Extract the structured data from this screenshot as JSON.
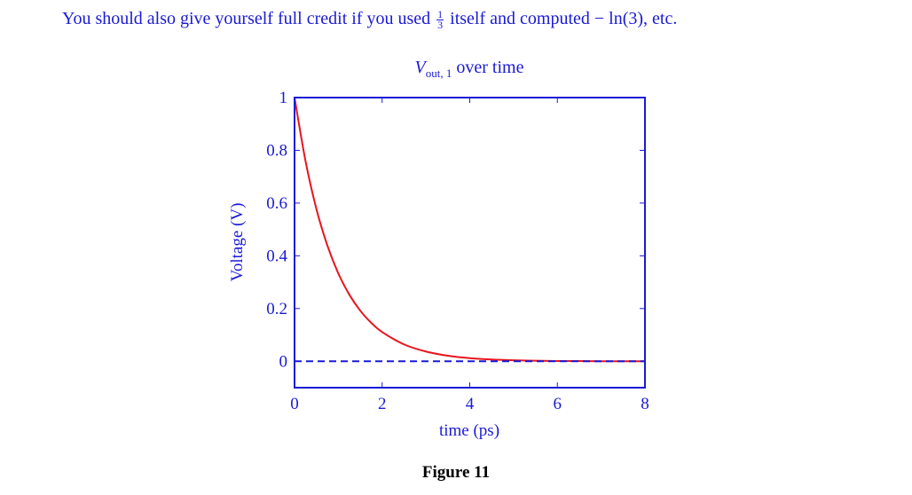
{
  "intro": {
    "before_fraction": "You should also give yourself full credit if you used ",
    "fraction_numerator": "1",
    "fraction_denominator": "3",
    "after_fraction": " itself and computed ",
    "math_expression": "− ln(3)",
    "trailing": ", etc."
  },
  "figure_caption": "Figure 11",
  "colors": {
    "axis": "#1a1ad6",
    "text": "#1a1ad6",
    "curve": "#e8141e",
    "dashed": "#1a1ad6"
  },
  "chart_data": {
    "type": "line",
    "title": "V_out, 1 over time",
    "title_parts": {
      "symbol": "V",
      "subscript": "out, 1",
      "rest": " over time"
    },
    "xlabel": "time (ps)",
    "ylabel": "Voltage (V)",
    "xlim": [
      0,
      8
    ],
    "ylim": [
      -0.1,
      1
    ],
    "x_ticks": [
      0,
      2,
      4,
      6,
      8
    ],
    "x_tick_labels": [
      "0",
      "2",
      "4",
      "6",
      "8"
    ],
    "y_ticks": [
      0,
      0.2,
      0.4,
      0.6,
      0.8,
      1
    ],
    "y_tick_labels": [
      "0",
      "0.2",
      "0.4",
      "0.6",
      "0.8",
      "1"
    ],
    "grid": false,
    "series": [
      {
        "style": "solid",
        "color": "#e8141e",
        "x": [
          0,
          0.25,
          0.5,
          0.75,
          1,
          1.25,
          1.5,
          1.75,
          2,
          2.5,
          3,
          3.5,
          4,
          4.5,
          5,
          5.5,
          6,
          6.5,
          7,
          7.5,
          8
        ],
        "y": [
          1,
          0.76,
          0.577,
          0.439,
          0.333,
          0.253,
          0.192,
          0.146,
          0.111,
          0.064,
          0.037,
          0.021,
          0.012,
          0.007,
          0.004,
          0.002,
          0.001,
          0.001,
          0.0,
          0.0,
          0.0
        ]
      },
      {
        "style": "dashed",
        "color": "#1a1ad6",
        "x": [
          0,
          8
        ],
        "y": [
          0,
          0
        ]
      }
    ]
  }
}
